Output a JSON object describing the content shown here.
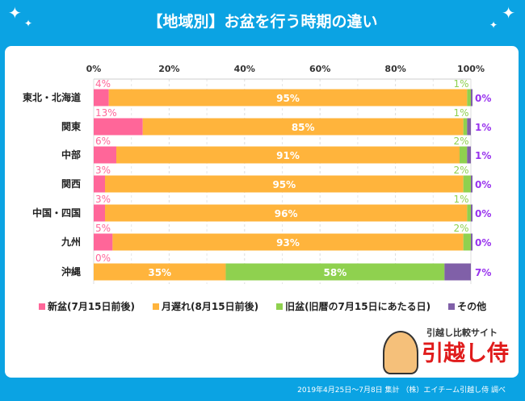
{
  "title": "【地域別】お盆を行う時期の違い",
  "footer": "2019年4月25日～7月8日 集計 （株）エイチーム引越し侍 調べ",
  "logo": {
    "sub": "引越し比較サイト",
    "main": "引越し侍"
  },
  "chart_data": {
    "type": "bar",
    "orientation": "horizontal",
    "stacked": true,
    "categories": [
      "東北・北海道",
      "関東",
      "中部",
      "関西",
      "中国・四国",
      "九州",
      "沖縄"
    ],
    "xlim": [
      0,
      100
    ],
    "xticks": [
      "0%",
      "20%",
      "40%",
      "60%",
      "80%",
      "100%"
    ],
    "grid": true,
    "legend_position": "bottom",
    "series": [
      {
        "name": "新盆(7月15日前後)",
        "color": "#ff6699",
        "values": [
          4,
          13,
          6,
          3,
          3,
          5,
          0
        ]
      },
      {
        "name": "月遅れ(8月15日前後)",
        "color": "#ffb43c",
        "values": [
          95,
          85,
          91,
          95,
          96,
          93,
          35
        ]
      },
      {
        "name": "旧盆(旧暦の7月15日にあたる日)",
        "color": "#8fd14f",
        "values": [
          1,
          1,
          2,
          2,
          1,
          2,
          58
        ]
      },
      {
        "name": "その他",
        "color": "#8060a8",
        "values": [
          0,
          1,
          1,
          0,
          0,
          0,
          7
        ]
      }
    ]
  }
}
